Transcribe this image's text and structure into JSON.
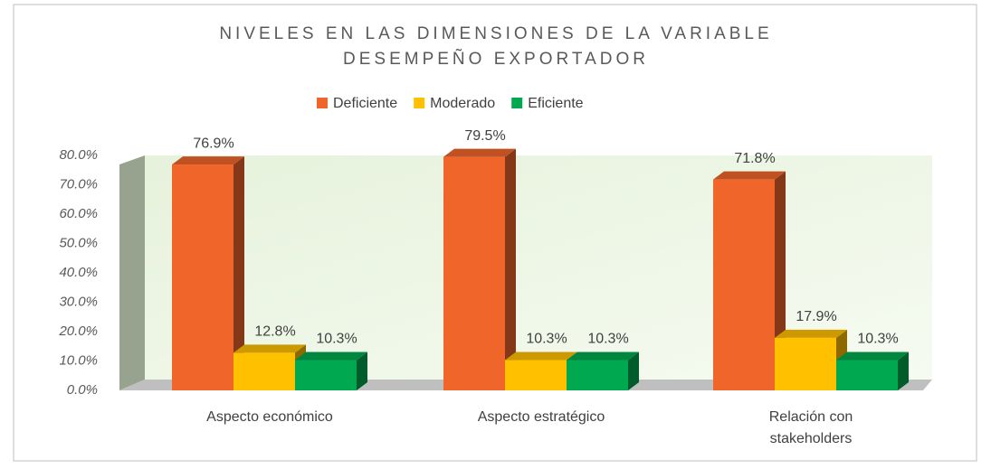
{
  "chart_data": {
    "type": "bar3d",
    "title": "NIVELES EN LAS DIMENSIONES DE LA VARIABLE DESEMPEÑO EXPORTADOR",
    "categories": [
      "Aspecto económico",
      "Aspecto estratégico",
      "Relación con stakeholders"
    ],
    "series": [
      {
        "name": "Deficiente",
        "color": "#f0652a",
        "values": [
          76.9,
          79.5,
          71.8
        ],
        "value_labels": [
          "76.9%",
          "79.5%",
          "71.8%"
        ]
      },
      {
        "name": "Moderado",
        "color": "#ffc000",
        "values": [
          12.8,
          10.3,
          17.9
        ],
        "value_labels": [
          "12.8%",
          "10.3%",
          "17.9%"
        ]
      },
      {
        "name": "Eficiente",
        "color": "#00a84f",
        "values": [
          10.3,
          10.3,
          10.3
        ],
        "value_labels": [
          "10.3%",
          "10.3%",
          "10.3%"
        ]
      }
    ],
    "ylim": [
      0,
      80
    ],
    "yticks": [
      {
        "value": 0,
        "label": "0.0%"
      },
      {
        "value": 10,
        "label": "10.0%"
      },
      {
        "value": 20,
        "label": "20.0%"
      },
      {
        "value": 30,
        "label": "30.0%"
      },
      {
        "value": 40,
        "label": "40.0%"
      },
      {
        "value": 50,
        "label": "50.0%"
      },
      {
        "value": 60,
        "label": "60.0%"
      },
      {
        "value": 70,
        "label": "70.0%"
      },
      {
        "value": 80,
        "label": "80.0%"
      }
    ],
    "legend": "top"
  }
}
